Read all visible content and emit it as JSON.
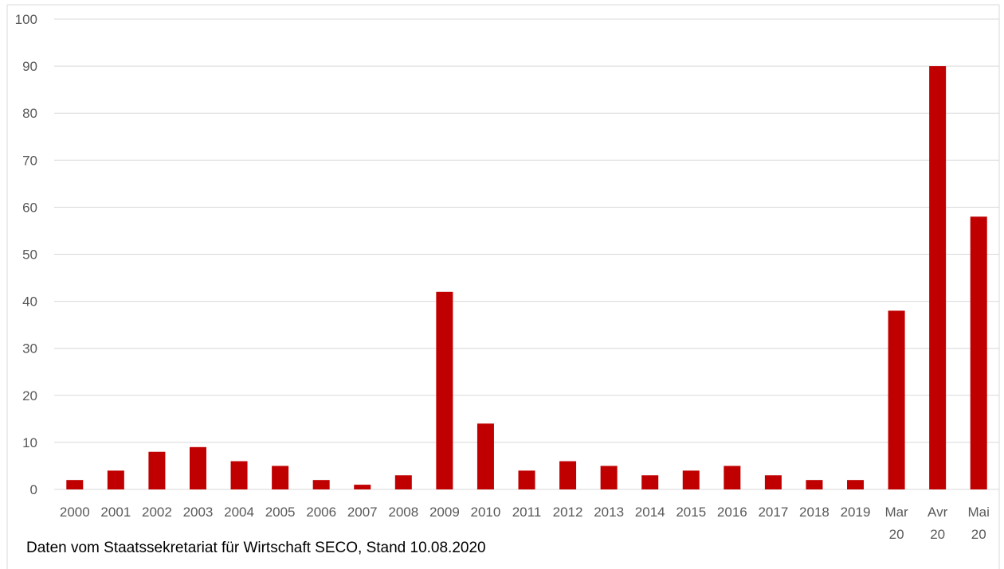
{
  "chart_data": {
    "type": "bar",
    "categories": [
      "2000",
      "2001",
      "2002",
      "2003",
      "2004",
      "2005",
      "2006",
      "2007",
      "2008",
      "2009",
      "2010",
      "2011",
      "2012",
      "2013",
      "2014",
      "2015",
      "2016",
      "2017",
      "2018",
      "2019",
      "Mar 20",
      "Avr 20",
      "Mai 20"
    ],
    "values": [
      2,
      4,
      8,
      9,
      6,
      5,
      2,
      1,
      3,
      42,
      14,
      4,
      6,
      5,
      3,
      4,
      5,
      3,
      2,
      2,
      38,
      90,
      58
    ],
    "title": "",
    "xlabel": "",
    "ylabel": "",
    "ylim": [
      0,
      100
    ],
    "yticks": [
      0,
      10,
      20,
      30,
      40,
      50,
      60,
      70,
      80,
      90,
      100
    ],
    "grid": true,
    "bar_color": "#C00000",
    "grid_color": "#D9D9D9",
    "tick_color": "#595959"
  },
  "source_note": "Daten vom Staatssekretariat für Wirtschaft SECO, Stand 10.08.2020"
}
